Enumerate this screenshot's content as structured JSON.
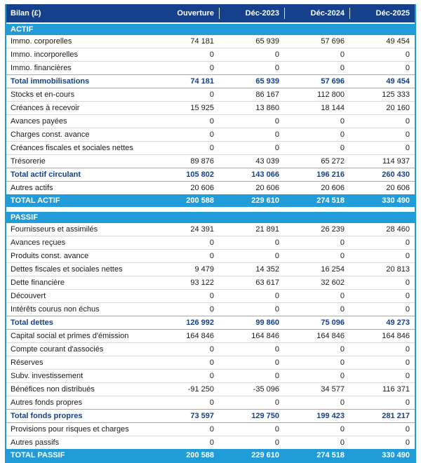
{
  "colors": {
    "header_navy": "#14408C",
    "band_blue": "#219CD8",
    "subtotal_text": "#14408C",
    "row_text": "#1A1A1A",
    "grid_line": "#D9D9D9"
  },
  "chart_data": {
    "type": "table",
    "title": "Bilan (£)",
    "columns": [
      "Bilan (£)",
      "Ouverture",
      "Déc-2023",
      "Déc-2024",
      "Déc-2025"
    ],
    "sections": [
      {
        "name": "ACTIF",
        "rows": [
          {
            "label": "Immo. corporelles",
            "style": "normal",
            "values": [
              74181,
              65939,
              57696,
              49454
            ]
          },
          {
            "label": "Immo. incorporelles",
            "style": "normal",
            "values": [
              0,
              0,
              0,
              0
            ]
          },
          {
            "label": "Immo. financières",
            "style": "normal",
            "values": [
              0,
              0,
              0,
              0
            ]
          },
          {
            "label": "Total immobilisations",
            "style": "subtotal",
            "values": [
              74181,
              65939,
              57696,
              49454
            ]
          },
          {
            "label": "Stocks et en-cours",
            "style": "normal",
            "values": [
              0,
              86167,
              112800,
              125333
            ]
          },
          {
            "label": "Créances à recevoir",
            "style": "normal",
            "values": [
              15925,
              13860,
              18144,
              20160
            ]
          },
          {
            "label": "Avances payées",
            "style": "normal",
            "values": [
              0,
              0,
              0,
              0
            ]
          },
          {
            "label": "Charges const. avance",
            "style": "normal",
            "values": [
              0,
              0,
              0,
              0
            ]
          },
          {
            "label": "Créances fiscales et sociales nettes",
            "style": "normal",
            "values": [
              0,
              0,
              0,
              0
            ]
          },
          {
            "label": "Trésorerie",
            "style": "normal",
            "values": [
              89876,
              43039,
              65272,
              114937
            ]
          },
          {
            "label": "Total actif circulant",
            "style": "subtotal",
            "values": [
              105802,
              143066,
              196216,
              260430
            ]
          },
          {
            "label": "Autres actifs",
            "style": "normal",
            "values": [
              20606,
              20606,
              20606,
              20606
            ]
          }
        ],
        "total_row": {
          "label": "TOTAL ACTIF",
          "values": [
            200588,
            229610,
            274518,
            330490
          ]
        }
      },
      {
        "name": "PASSIF",
        "rows": [
          {
            "label": "Fournisseurs et assimilés",
            "style": "normal",
            "values": [
              24391,
              21891,
              26239,
              28460
            ]
          },
          {
            "label": "Avances reçues",
            "style": "normal",
            "values": [
              0,
              0,
              0,
              0
            ]
          },
          {
            "label": "Produits const. avance",
            "style": "normal",
            "values": [
              0,
              0,
              0,
              0
            ]
          },
          {
            "label": "Dettes fiscales et sociales nettes",
            "style": "normal",
            "values": [
              9479,
              14352,
              16254,
              20813
            ]
          },
          {
            "label": "Dette financière",
            "style": "normal",
            "values": [
              93122,
              63617,
              32602,
              0
            ]
          },
          {
            "label": "Découvert",
            "style": "normal",
            "values": [
              0,
              0,
              0,
              0
            ]
          },
          {
            "label": "Intérêts courus non échus",
            "style": "normal",
            "values": [
              0,
              0,
              0,
              0
            ]
          },
          {
            "label": "Total dettes",
            "style": "subtotal",
            "values": [
              126992,
              99860,
              75096,
              49273
            ]
          },
          {
            "label": "Capital social et primes d'émission",
            "style": "normal",
            "values": [
              164846,
              164846,
              164846,
              164846
            ]
          },
          {
            "label": "Compte courant d'associés",
            "style": "normal",
            "values": [
              0,
              0,
              0,
              0
            ]
          },
          {
            "label": "Réserves",
            "style": "normal",
            "values": [
              0,
              0,
              0,
              0
            ]
          },
          {
            "label": "Subv. investissement",
            "style": "normal",
            "values": [
              0,
              0,
              0,
              0
            ]
          },
          {
            "label": "Bénéfices non distribués",
            "style": "normal",
            "values": [
              -91250,
              -35096,
              34577,
              116371
            ]
          },
          {
            "label": "Autres fonds propres",
            "style": "normal",
            "values": [
              0,
              0,
              0,
              0
            ]
          },
          {
            "label": "Total fonds propres",
            "style": "subtotal",
            "values": [
              73597,
              129750,
              199423,
              281217
            ]
          },
          {
            "label": "Provisions pour risques et charges",
            "style": "normal",
            "values": [
              0,
              0,
              0,
              0
            ]
          },
          {
            "label": "Autres passifs",
            "style": "normal",
            "values": [
              0,
              0,
              0,
              0
            ]
          }
        ],
        "total_row": {
          "label": "TOTAL PASSIF",
          "values": [
            200588,
            229610,
            274518,
            330490
          ]
        }
      }
    ]
  }
}
